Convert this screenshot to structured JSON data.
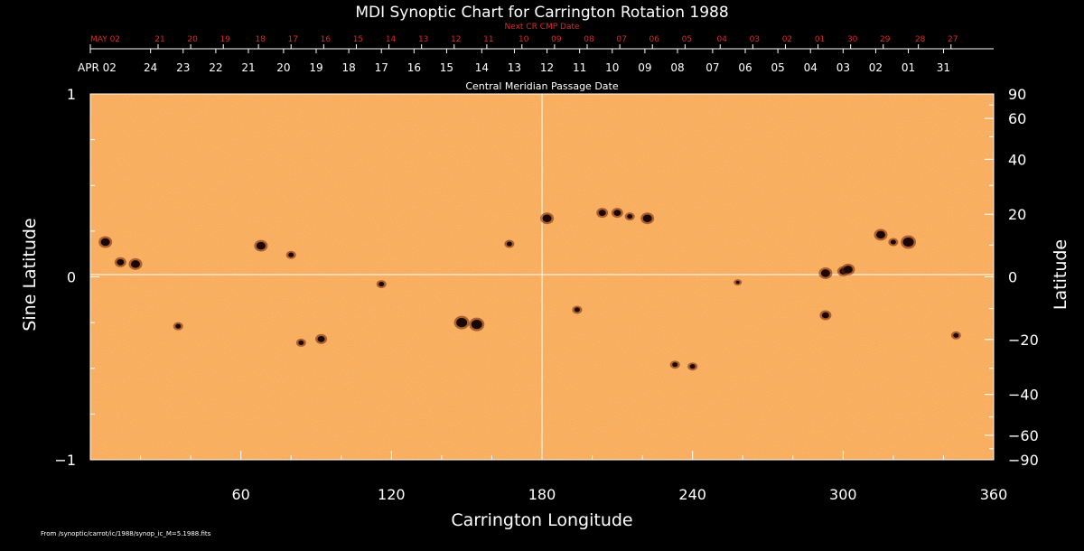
{
  "chart_data": {
    "type": "scatter",
    "title": "MDI Synoptic Chart for Carrington Rotation 1988",
    "xlabel": "Carrington Longitude",
    "ylabel_left": "Sine Latitude",
    "ylabel_right": "Latitude",
    "top_axis_label": "Central Meridian Passage Date",
    "next_axis_label": "Next CR CMP Date",
    "footer": "From /synoptic/carrot/ic/1988/synop_ic_M=5.1988.fits",
    "xlim": [
      0,
      360
    ],
    "ylim": [
      -1,
      1
    ],
    "x_ticks": [
      60,
      120,
      180,
      240,
      300,
      360
    ],
    "y_ticks_left": [
      {
        "v": 1,
        "t": "1"
      },
      {
        "v": 0,
        "t": "0"
      },
      {
        "v": -1,
        "t": "−1"
      }
    ],
    "y_ticks_right": [
      {
        "deg": 90,
        "t": "90"
      },
      {
        "deg": 60,
        "t": "60"
      },
      {
        "deg": 40,
        "t": "40"
      },
      {
        "deg": 20,
        "t": "20"
      },
      {
        "deg": 0,
        "t": "0"
      },
      {
        "deg": -20,
        "t": "−20"
      },
      {
        "deg": -40,
        "t": "−40"
      },
      {
        "deg": -60,
        "t": "−60"
      },
      {
        "deg": -90,
        "t": "−90"
      }
    ],
    "date_ticks": [
      {
        "lon": 0,
        "t": "APR 02"
      },
      {
        "lon": 24,
        "t": "24"
      },
      {
        "lon": 37,
        "t": "23"
      },
      {
        "lon": 50,
        "t": "22"
      },
      {
        "lon": 63,
        "t": "21"
      },
      {
        "lon": 77,
        "t": "20"
      },
      {
        "lon": 90,
        "t": "19"
      },
      {
        "lon": 103,
        "t": "18"
      },
      {
        "lon": 116,
        "t": "17"
      },
      {
        "lon": 129,
        "t": "16"
      },
      {
        "lon": 142,
        "t": "15"
      },
      {
        "lon": 156,
        "t": "14"
      },
      {
        "lon": 169,
        "t": "13"
      },
      {
        "lon": 182,
        "t": "12"
      },
      {
        "lon": 195,
        "t": "11"
      },
      {
        "lon": 208,
        "t": "10"
      },
      {
        "lon": 221,
        "t": "09"
      },
      {
        "lon": 234,
        "t": "08"
      },
      {
        "lon": 248,
        "t": "07"
      },
      {
        "lon": 261,
        "t": "06"
      },
      {
        "lon": 274,
        "t": "05"
      },
      {
        "lon": 287,
        "t": "04"
      },
      {
        "lon": 300,
        "t": "03"
      },
      {
        "lon": 313,
        "t": "02"
      },
      {
        "lon": 326,
        "t": "01"
      },
      {
        "lon": 340,
        "t": "31"
      }
    ],
    "next_ticks": [
      {
        "lon": 0,
        "t": "MAY 02"
      },
      {
        "lon": 27,
        "t": "21"
      },
      {
        "lon": 40,
        "t": "20"
      },
      {
        "lon": 53,
        "t": "19"
      },
      {
        "lon": 67,
        "t": "18"
      },
      {
        "lon": 80,
        "t": "17"
      },
      {
        "lon": 93,
        "t": "16"
      },
      {
        "lon": 106,
        "t": "15"
      },
      {
        "lon": 119,
        "t": "14"
      },
      {
        "lon": 132,
        "t": "13"
      },
      {
        "lon": 145,
        "t": "12"
      },
      {
        "lon": 158,
        "t": "11"
      },
      {
        "lon": 172,
        "t": "10"
      },
      {
        "lon": 185,
        "t": "09"
      },
      {
        "lon": 198,
        "t": "08"
      },
      {
        "lon": 211,
        "t": "07"
      },
      {
        "lon": 224,
        "t": "06"
      },
      {
        "lon": 237,
        "t": "05"
      },
      {
        "lon": 251,
        "t": "04"
      },
      {
        "lon": 264,
        "t": "03"
      },
      {
        "lon": 277,
        "t": "02"
      },
      {
        "lon": 290,
        "t": "01"
      },
      {
        "lon": 303,
        "t": "30"
      },
      {
        "lon": 316,
        "t": "29"
      },
      {
        "lon": 330,
        "t": "28"
      },
      {
        "lon": 343,
        "t": "27"
      }
    ],
    "sunspots": [
      {
        "lon": 6,
        "sinlat": 0.19,
        "size": 5
      },
      {
        "lon": 12,
        "sinlat": 0.08,
        "size": 4
      },
      {
        "lon": 18,
        "sinlat": 0.07,
        "size": 5
      },
      {
        "lon": 68,
        "sinlat": 0.17,
        "size": 5
      },
      {
        "lon": 80,
        "sinlat": 0.12,
        "size": 3
      },
      {
        "lon": 116,
        "sinlat": -0.04,
        "size": 3
      },
      {
        "lon": 148,
        "sinlat": -0.25,
        "size": 6
      },
      {
        "lon": 154,
        "sinlat": -0.26,
        "size": 6
      },
      {
        "lon": 167,
        "sinlat": 0.18,
        "size": 3
      },
      {
        "lon": 182,
        "sinlat": 0.32,
        "size": 5
      },
      {
        "lon": 204,
        "sinlat": 0.35,
        "size": 4
      },
      {
        "lon": 210,
        "sinlat": 0.35,
        "size": 4
      },
      {
        "lon": 222,
        "sinlat": 0.32,
        "size": 5
      },
      {
        "lon": 215,
        "sinlat": 0.33,
        "size": 3
      },
      {
        "lon": 194,
        "sinlat": -0.18,
        "size": 3
      },
      {
        "lon": 92,
        "sinlat": -0.34,
        "size": 4
      },
      {
        "lon": 84,
        "sinlat": -0.36,
        "size": 3
      },
      {
        "lon": 233,
        "sinlat": -0.48,
        "size": 3
      },
      {
        "lon": 240,
        "sinlat": -0.49,
        "size": 3
      },
      {
        "lon": 293,
        "sinlat": -0.21,
        "size": 4
      },
      {
        "lon": 293,
        "sinlat": 0.02,
        "size": 5
      },
      {
        "lon": 300,
        "sinlat": 0.03,
        "size": 4
      },
      {
        "lon": 302,
        "sinlat": 0.04,
        "size": 5
      },
      {
        "lon": 315,
        "sinlat": 0.23,
        "size": 5
      },
      {
        "lon": 320,
        "sinlat": 0.19,
        "size": 3
      },
      {
        "lon": 326,
        "sinlat": 0.19,
        "size": 6
      },
      {
        "lon": 345,
        "sinlat": -0.32,
        "size": 3
      },
      {
        "lon": 35,
        "sinlat": -0.27,
        "size": 3
      },
      {
        "lon": 258,
        "sinlat": -0.03,
        "size": 2
      }
    ],
    "colors": {
      "background": "#000000",
      "photosphere": "#f7a54f",
      "photosphere_light": "#fbbc6e",
      "spot": "#1a0500",
      "spot_rim": "#6e1f05",
      "axis": "#ffffff",
      "next_dates": "#d92b2b"
    }
  }
}
